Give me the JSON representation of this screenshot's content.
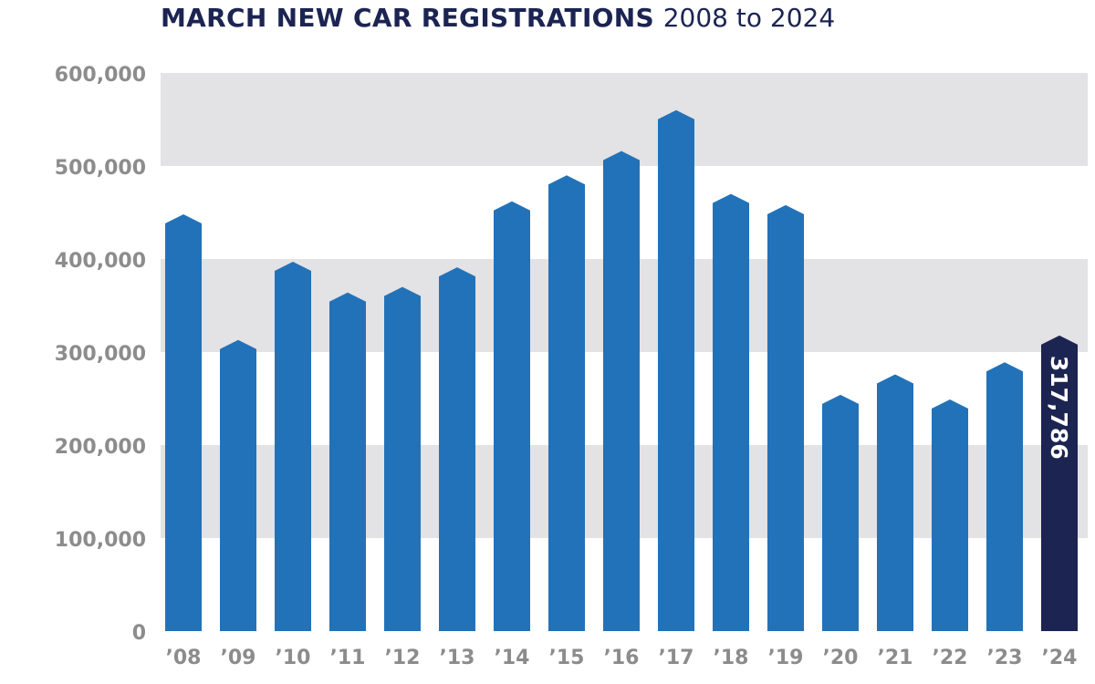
{
  "title": {
    "main": "MARCH NEW CAR REGISTRATIONS",
    "sub": "2008 to 2024"
  },
  "colors": {
    "bar": "#2272b9",
    "highlight": "#1c2452",
    "band": "#e3e2e4",
    "tick_text": "#8c8c8c",
    "title": "#1c2452"
  },
  "chart_data": {
    "type": "bar",
    "title": "MARCH NEW CAR REGISTRATIONS 2008 to 2024",
    "xlabel": "",
    "ylabel": "",
    "categories": [
      "’08",
      "’09",
      "’10",
      "’11",
      "’12",
      "’13",
      "’14",
      "’15",
      "’16",
      "’17",
      "’18",
      "’19",
      "’20",
      "’21",
      "’22",
      "’23",
      "’24"
    ],
    "values": [
      448000,
      313000,
      397000,
      364000,
      370000,
      391000,
      462000,
      490000,
      516000,
      560000,
      470000,
      458000,
      254000,
      276000,
      249000,
      289000,
      317786
    ],
    "highlight_index": 16,
    "highlight_label": "317,786",
    "ylim": [
      0,
      600000
    ],
    "yticks": [
      0,
      100000,
      200000,
      300000,
      400000,
      500000,
      600000
    ],
    "ytick_labels": [
      "0",
      "100,000",
      "200,000",
      "300,000",
      "400,000",
      "500,000",
      "600,000"
    ],
    "grid": "alternating horizontal bands",
    "legend": "none"
  }
}
